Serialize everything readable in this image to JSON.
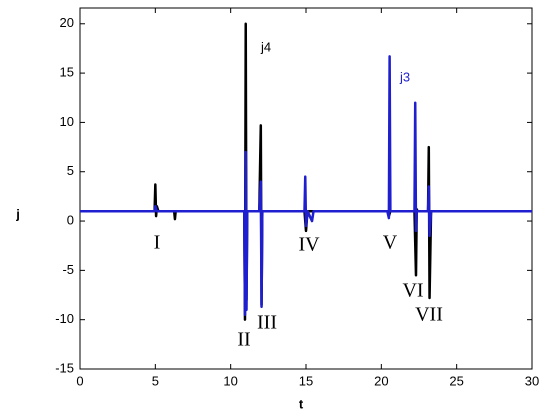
{
  "chart_data": {
    "type": "line",
    "xlabel": "t",
    "ylabel": "j",
    "xlim": [
      0,
      30
    ],
    "ylim": [
      -15,
      21.6
    ],
    "xticks": [
      0,
      5,
      10,
      15,
      20,
      25,
      30
    ],
    "yticks": [
      -15,
      -10,
      -5,
      0,
      5,
      10,
      15,
      20
    ],
    "grid": false,
    "series": [
      {
        "name": "j4",
        "color": "#000000",
        "x": [
          0,
          4.95,
          5.0,
          5.05,
          5.1,
          5.2,
          6.25,
          6.3,
          6.35,
          10.9,
          10.95,
          11.0,
          11.05,
          11.1,
          11.2,
          11.9,
          12.0,
          12.05,
          12.1,
          12.2,
          14.9,
          15.0,
          15.1,
          20.4,
          20.5,
          20.6,
          22.2,
          22.3,
          22.35,
          22.4,
          23.1,
          23.15,
          23.2,
          23.3,
          30
        ],
        "values": [
          1,
          1,
          3.7,
          0.5,
          1.5,
          1,
          1,
          0.2,
          1,
          1,
          -10,
          20,
          -8,
          1,
          1,
          1,
          9.7,
          -8.5,
          1,
          1,
          1,
          -1,
          1,
          1,
          0.5,
          1,
          1,
          -5.5,
          1.2,
          1,
          1,
          7.5,
          -7.8,
          1,
          1
        ]
      },
      {
        "name": "j3",
        "color": "#1f1fd0",
        "x": [
          0,
          4.95,
          5.0,
          5.1,
          10.9,
          10.95,
          11.0,
          11.05,
          11.1,
          11.2,
          11.9,
          12.0,
          12.05,
          12.1,
          12.2,
          14.9,
          14.95,
          15.0,
          15.1,
          15.4,
          15.5,
          20.4,
          20.5,
          20.55,
          20.6,
          20.7,
          22.2,
          22.25,
          22.3,
          22.35,
          22.4,
          23.1,
          23.15,
          23.2,
          23.3,
          30
        ],
        "values": [
          1,
          1,
          1.5,
          1,
          1,
          -9.5,
          7,
          -9,
          1,
          1,
          1,
          4,
          -8.7,
          1,
          1,
          1,
          4.5,
          -0.5,
          1,
          0,
          1,
          1,
          0.3,
          16.7,
          1,
          1,
          1,
          12,
          -1,
          1,
          1,
          1,
          3.5,
          -1.5,
          1,
          1
        ]
      }
    ],
    "annotations": [
      "I",
      "II",
      "III",
      "IV",
      "V",
      "VI",
      "VII"
    ]
  }
}
